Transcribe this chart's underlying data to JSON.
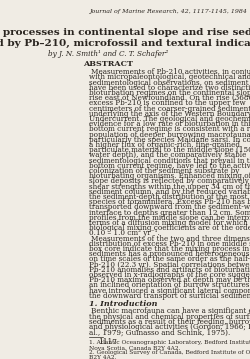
{
  "journal_line": "Journal of Marine Research, 42, 1117-1145, 1984",
  "title_line1": "Bioturbation processes in continental slope and rise sediments",
  "title_line2": "delineated by Pb–210, microfossil and textural indicators",
  "author_line": "by J. N. Smith¹ and C. T. Schafer²",
  "abstract_header": "ABSTRACT",
  "abstract_text": "Measurements of Pb-210 activities, in conjunction with micropaleontological, geotechnical and sedimentological observations, on sediment cores have been used to characterize two distinctive bioturbation regimes on the continental slope and rise east of Newfoundland. On the rise (3680 m), excess Pb-210 is confined to the upper few centimeters of the coarser-grained sediments underlying the axis of the Western Boundary Undercurrent. The geological and geochemical evidence for a low rate of bioturbation in this high bottom current regime is consistent with a reduced population of deeper burrowing macrofauna, particularly the species Maldane sarsi. In contrast, a higher flux of organic-rich, fine-grained particulate material to the middle slope (1500 m water depth), and the comparatively stable sedimentological conditions that prevail in this low bottom current regime, have led to the active colonization of the sediment substrate by bioturbating organisms. Enhanced mixing of middle slope deposits is reflected by comparatively lower shear strengths within the upper 34 cm of the sediment column, and by the reduced variability of the sediment-depth distribution of the most abundant species of foraminifera. Excess Pb-210 has been transported downward from the sediment-water interface to depths greater than 12 cm. Some Pb-210 profiles from the middle slope can be interpreted in terms of a diffusion mixing model for which the biological mixing coefficients are of the order of 0.10 – 1.0 cm² yr⁻¹.",
  "abstract_text2": "Measurements of the two and three dimensional distribution of excess Pb-210 in one middle slope box core indicate that the mixing process in these sediments has a pronounced heterogeneous component on time scales of the same order as the half-life of Pb-210 (22.3 yr). Spatial correlations between Pb-210 anomalies and artifacts of bioturbation observed in x-radiographs of the core suggest that Pb-210 maxima observed at depth may be the result of an inclined orientation of burrow structures which have introduced a significant lateral component to the downward transport of surficial sediments.",
  "intro_header": "1. Introduction",
  "intro_text": "Benthic macrofauna can have a significant effect on the physical and chemical properties of surficial sediments as a result of their feeding, burrowing and physiological activities (Gordon, 1966; Peng et al., 1979; Guinasso and Schink, 1975).",
  "footnote1": "1. Atlantic Oceanographic Laboratory, Bedford Institute of Oceanography, P.O. Box 1006, Dartmouth,\nNova Scotia, Canada B2Y 4A2.",
  "footnote2": "2. Geological Survey of Canada, Bedford Institute of Oceanography, Dartmouth, Nova Scotia, Canada\nB2Y 4A2.",
  "page_number": "1117",
  "bg_color": "#f0ece4",
  "text_color": "#2a2520",
  "title_fontsize": 7.5,
  "body_fontsize": 5.2,
  "journal_fontsize": 4.5,
  "abstract_header_fontsize": 5.8,
  "intro_header_fontsize": 5.8,
  "footnote_fontsize": 4.2
}
